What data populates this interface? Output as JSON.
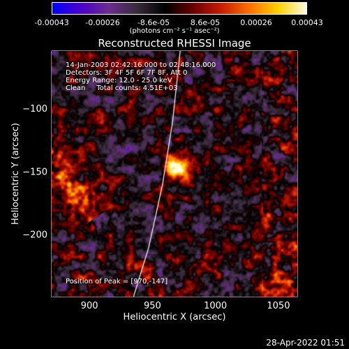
{
  "colorbar": {
    "ticks": [
      "-0.00043",
      "-0.00026",
      "-8.6e-05",
      "8.6e-05",
      "0.00026",
      "0.00043"
    ],
    "units_label": "(photons cm⁻² s⁻¹ asec⁻²)",
    "stops": [
      "#0000ff",
      "#4b00c8",
      "#6a2d8e",
      "#3a2a3a",
      "#000000",
      "#6b0000",
      "#c81e00",
      "#ff7000",
      "#ffd100",
      "#fffbe0"
    ]
  },
  "chart_data": {
    "type": "heatmap",
    "title": "Reconstructed RHESSI Image",
    "xlabel": "Heliocentric X (arcsec)",
    "ylabel": "Heliocentric Y (arcsec)",
    "xlim": [
      870,
      1065
    ],
    "ylim": [
      -249,
      -54
    ],
    "xticks": [
      900,
      950,
      1000,
      1050
    ],
    "yticks": [
      -100,
      -150,
      -200
    ],
    "peak": {
      "x": 970,
      "y": -147
    },
    "limb_curve": [
      [
        972,
        -54
      ],
      [
        966,
        -110
      ],
      [
        958,
        -160
      ],
      [
        947,
        -210
      ],
      [
        935,
        -249
      ]
    ]
  },
  "annotations": {
    "time": "14-Jan-2003 02:42:16.000 to 02:48:16.000",
    "detectors": "Detectors: 3F 4F 5F 6F 7F 8F, Att 0",
    "energy": "Energy Range: 12.0 - 25.0 keV",
    "clean": "Clean     Total counts: 4.51E+03",
    "peak_text": "Position of Peak = [970,-147]"
  },
  "footer": "28-Apr-2022 01:51"
}
